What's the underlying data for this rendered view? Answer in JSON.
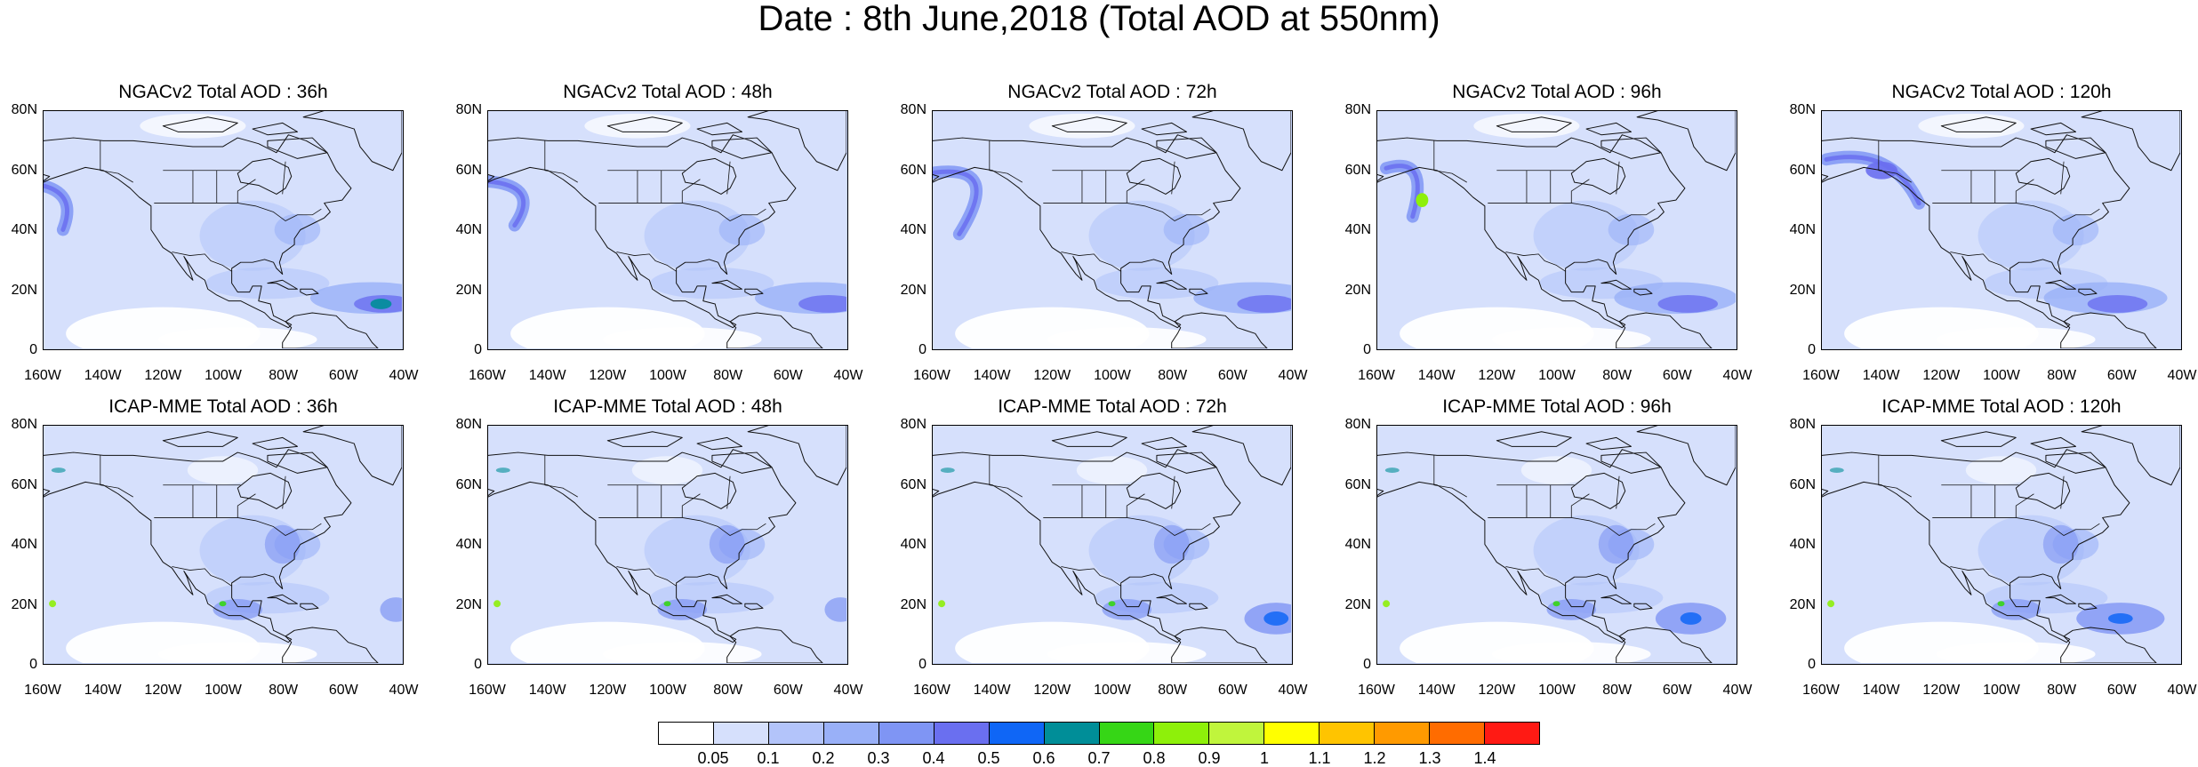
{
  "title": "Date : 8th June,2018 (Total AOD at 550nm)",
  "panels": [
    {
      "title": "NGACv2 Total AOD : 36h",
      "model": "NGACv2",
      "forecast_hour": 36
    },
    {
      "title": "NGACv2 Total AOD : 48h",
      "model": "NGACv2",
      "forecast_hour": 48
    },
    {
      "title": "NGACv2 Total AOD : 72h",
      "model": "NGACv2",
      "forecast_hour": 72
    },
    {
      "title": "NGACv2 Total AOD : 96h",
      "model": "NGACv2",
      "forecast_hour": 96
    },
    {
      "title": "NGACv2 Total AOD : 120h",
      "model": "NGACv2",
      "forecast_hour": 120
    },
    {
      "title": "ICAP-MME Total AOD : 36h",
      "model": "ICAP-MME",
      "forecast_hour": 36
    },
    {
      "title": "ICAP-MME Total AOD : 48h",
      "model": "ICAP-MME",
      "forecast_hour": 48
    },
    {
      "title": "ICAP-MME Total AOD : 72h",
      "model": "ICAP-MME",
      "forecast_hour": 72
    },
    {
      "title": "ICAP-MME Total AOD : 96h",
      "model": "ICAP-MME",
      "forecast_hour": 96
    },
    {
      "title": "ICAP-MME Total AOD : 120h",
      "model": "ICAP-MME",
      "forecast_hour": 120
    }
  ],
  "axes": {
    "lat_ticks": [
      "80N",
      "60N",
      "40N",
      "20N",
      "0"
    ],
    "lon_ticks": [
      "160W",
      "140W",
      "120W",
      "100W",
      "80W",
      "60W",
      "40W"
    ],
    "lat_range": [
      0,
      80
    ],
    "lon_range": [
      -160,
      -40
    ]
  },
  "colorbar": {
    "labels": [
      "0.05",
      "0.1",
      "0.2",
      "0.3",
      "0.4",
      "0.5",
      "0.6",
      "0.7",
      "0.8",
      "0.9",
      "1",
      "1.1",
      "1.2",
      "1.3",
      "1.4"
    ],
    "colors": [
      "#ffffff",
      "#d6e0fc",
      "#b3c4fa",
      "#99b0f8",
      "#7f95f4",
      "#6a6ff0",
      "#0f66f6",
      "#008e98",
      "#36d616",
      "#8ef00a",
      "#c0f53c",
      "#ffff00",
      "#ffc400",
      "#ff9a00",
      "#ff6c00",
      "#ff1a14"
    ]
  }
}
